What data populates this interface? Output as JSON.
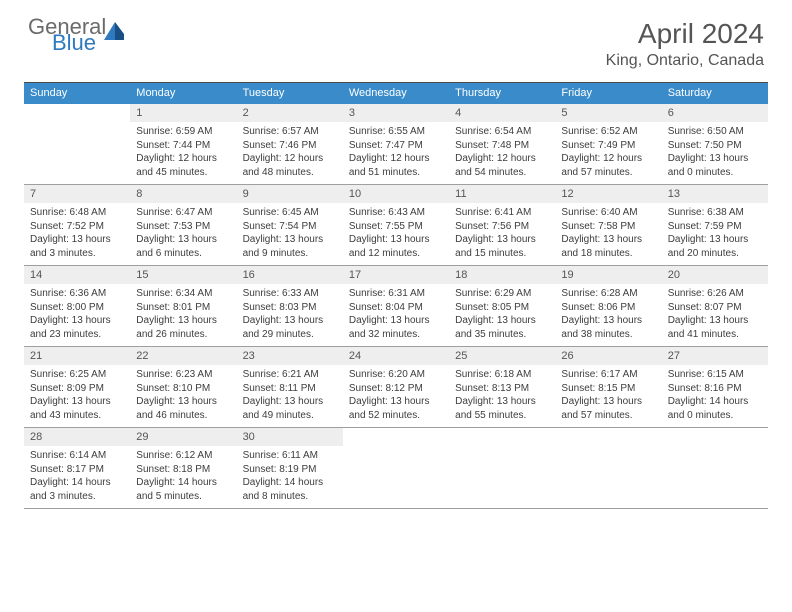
{
  "brand": {
    "general": "General",
    "blue": "Blue"
  },
  "title": {
    "main": "April 2024",
    "location": "King, Ontario, Canada"
  },
  "colors": {
    "header_bg": "#3a8bc9",
    "daynum_bg": "#eeeeee",
    "brand_blue": "#2f7abf",
    "brand_gray": "#6b6b6b",
    "border": "#9f9f9f"
  },
  "weekdays": [
    "Sunday",
    "Monday",
    "Tuesday",
    "Wednesday",
    "Thursday",
    "Friday",
    "Saturday"
  ],
  "weeks": [
    [
      null,
      {
        "n": "1",
        "sunrise": "Sunrise: 6:59 AM",
        "sunset": "Sunset: 7:44 PM",
        "d1": "Daylight: 12 hours",
        "d2": "and 45 minutes."
      },
      {
        "n": "2",
        "sunrise": "Sunrise: 6:57 AM",
        "sunset": "Sunset: 7:46 PM",
        "d1": "Daylight: 12 hours",
        "d2": "and 48 minutes."
      },
      {
        "n": "3",
        "sunrise": "Sunrise: 6:55 AM",
        "sunset": "Sunset: 7:47 PM",
        "d1": "Daylight: 12 hours",
        "d2": "and 51 minutes."
      },
      {
        "n": "4",
        "sunrise": "Sunrise: 6:54 AM",
        "sunset": "Sunset: 7:48 PM",
        "d1": "Daylight: 12 hours",
        "d2": "and 54 minutes."
      },
      {
        "n": "5",
        "sunrise": "Sunrise: 6:52 AM",
        "sunset": "Sunset: 7:49 PM",
        "d1": "Daylight: 12 hours",
        "d2": "and 57 minutes."
      },
      {
        "n": "6",
        "sunrise": "Sunrise: 6:50 AM",
        "sunset": "Sunset: 7:50 PM",
        "d1": "Daylight: 13 hours",
        "d2": "and 0 minutes."
      }
    ],
    [
      {
        "n": "7",
        "sunrise": "Sunrise: 6:48 AM",
        "sunset": "Sunset: 7:52 PM",
        "d1": "Daylight: 13 hours",
        "d2": "and 3 minutes."
      },
      {
        "n": "8",
        "sunrise": "Sunrise: 6:47 AM",
        "sunset": "Sunset: 7:53 PM",
        "d1": "Daylight: 13 hours",
        "d2": "and 6 minutes."
      },
      {
        "n": "9",
        "sunrise": "Sunrise: 6:45 AM",
        "sunset": "Sunset: 7:54 PM",
        "d1": "Daylight: 13 hours",
        "d2": "and 9 minutes."
      },
      {
        "n": "10",
        "sunrise": "Sunrise: 6:43 AM",
        "sunset": "Sunset: 7:55 PM",
        "d1": "Daylight: 13 hours",
        "d2": "and 12 minutes."
      },
      {
        "n": "11",
        "sunrise": "Sunrise: 6:41 AM",
        "sunset": "Sunset: 7:56 PM",
        "d1": "Daylight: 13 hours",
        "d2": "and 15 minutes."
      },
      {
        "n": "12",
        "sunrise": "Sunrise: 6:40 AM",
        "sunset": "Sunset: 7:58 PM",
        "d1": "Daylight: 13 hours",
        "d2": "and 18 minutes."
      },
      {
        "n": "13",
        "sunrise": "Sunrise: 6:38 AM",
        "sunset": "Sunset: 7:59 PM",
        "d1": "Daylight: 13 hours",
        "d2": "and 20 minutes."
      }
    ],
    [
      {
        "n": "14",
        "sunrise": "Sunrise: 6:36 AM",
        "sunset": "Sunset: 8:00 PM",
        "d1": "Daylight: 13 hours",
        "d2": "and 23 minutes."
      },
      {
        "n": "15",
        "sunrise": "Sunrise: 6:34 AM",
        "sunset": "Sunset: 8:01 PM",
        "d1": "Daylight: 13 hours",
        "d2": "and 26 minutes."
      },
      {
        "n": "16",
        "sunrise": "Sunrise: 6:33 AM",
        "sunset": "Sunset: 8:03 PM",
        "d1": "Daylight: 13 hours",
        "d2": "and 29 minutes."
      },
      {
        "n": "17",
        "sunrise": "Sunrise: 6:31 AM",
        "sunset": "Sunset: 8:04 PM",
        "d1": "Daylight: 13 hours",
        "d2": "and 32 minutes."
      },
      {
        "n": "18",
        "sunrise": "Sunrise: 6:29 AM",
        "sunset": "Sunset: 8:05 PM",
        "d1": "Daylight: 13 hours",
        "d2": "and 35 minutes."
      },
      {
        "n": "19",
        "sunrise": "Sunrise: 6:28 AM",
        "sunset": "Sunset: 8:06 PM",
        "d1": "Daylight: 13 hours",
        "d2": "and 38 minutes."
      },
      {
        "n": "20",
        "sunrise": "Sunrise: 6:26 AM",
        "sunset": "Sunset: 8:07 PM",
        "d1": "Daylight: 13 hours",
        "d2": "and 41 minutes."
      }
    ],
    [
      {
        "n": "21",
        "sunrise": "Sunrise: 6:25 AM",
        "sunset": "Sunset: 8:09 PM",
        "d1": "Daylight: 13 hours",
        "d2": "and 43 minutes."
      },
      {
        "n": "22",
        "sunrise": "Sunrise: 6:23 AM",
        "sunset": "Sunset: 8:10 PM",
        "d1": "Daylight: 13 hours",
        "d2": "and 46 minutes."
      },
      {
        "n": "23",
        "sunrise": "Sunrise: 6:21 AM",
        "sunset": "Sunset: 8:11 PM",
        "d1": "Daylight: 13 hours",
        "d2": "and 49 minutes."
      },
      {
        "n": "24",
        "sunrise": "Sunrise: 6:20 AM",
        "sunset": "Sunset: 8:12 PM",
        "d1": "Daylight: 13 hours",
        "d2": "and 52 minutes."
      },
      {
        "n": "25",
        "sunrise": "Sunrise: 6:18 AM",
        "sunset": "Sunset: 8:13 PM",
        "d1": "Daylight: 13 hours",
        "d2": "and 55 minutes."
      },
      {
        "n": "26",
        "sunrise": "Sunrise: 6:17 AM",
        "sunset": "Sunset: 8:15 PM",
        "d1": "Daylight: 13 hours",
        "d2": "and 57 minutes."
      },
      {
        "n": "27",
        "sunrise": "Sunrise: 6:15 AM",
        "sunset": "Sunset: 8:16 PM",
        "d1": "Daylight: 14 hours",
        "d2": "and 0 minutes."
      }
    ],
    [
      {
        "n": "28",
        "sunrise": "Sunrise: 6:14 AM",
        "sunset": "Sunset: 8:17 PM",
        "d1": "Daylight: 14 hours",
        "d2": "and 3 minutes."
      },
      {
        "n": "29",
        "sunrise": "Sunrise: 6:12 AM",
        "sunset": "Sunset: 8:18 PM",
        "d1": "Daylight: 14 hours",
        "d2": "and 5 minutes."
      },
      {
        "n": "30",
        "sunrise": "Sunrise: 6:11 AM",
        "sunset": "Sunset: 8:19 PM",
        "d1": "Daylight: 14 hours",
        "d2": "and 8 minutes."
      },
      null,
      null,
      null,
      null
    ]
  ]
}
